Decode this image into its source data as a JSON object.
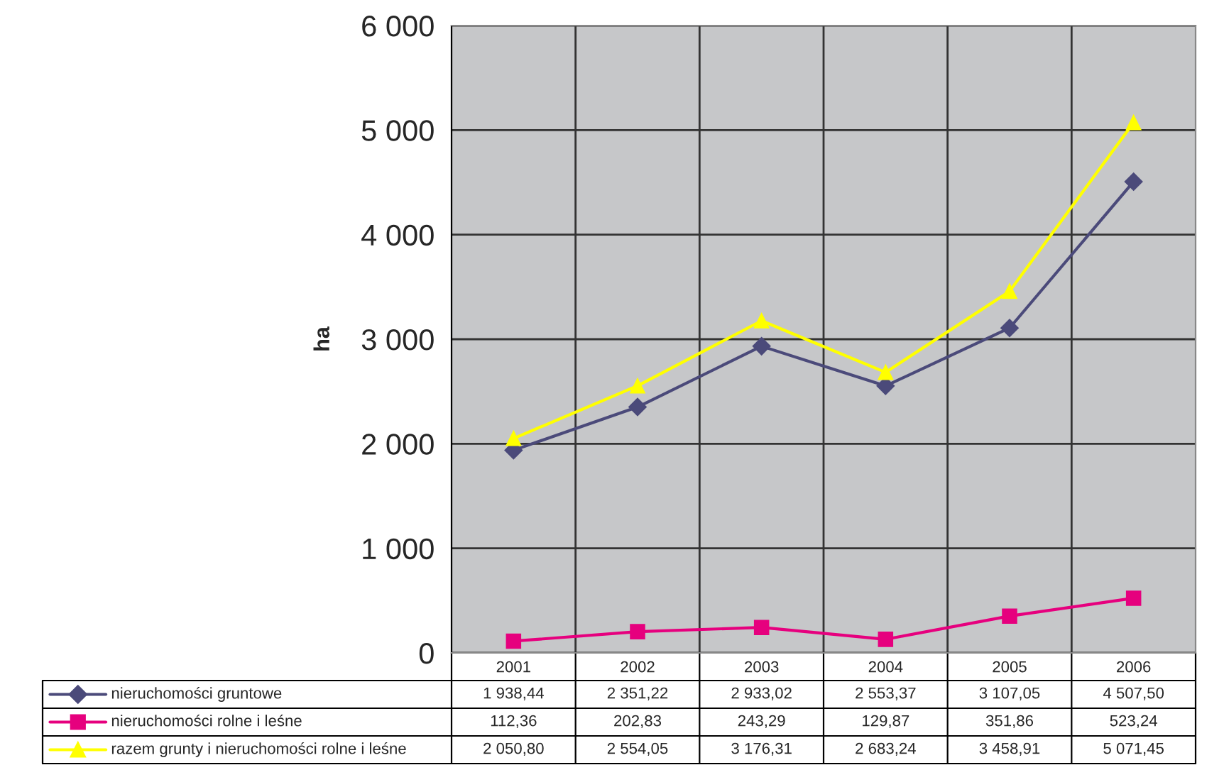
{
  "chart_data": {
    "type": "line",
    "ylabel": "ha",
    "categories": [
      "2001",
      "2002",
      "2003",
      "2004",
      "2005",
      "2006"
    ],
    "series": [
      {
        "name": "nieruchomości gruntowe",
        "color": "#4b4a7a",
        "marker": "diamond",
        "values": [
          1938.44,
          2351.22,
          2933.02,
          2553.37,
          3107.05,
          4507.5
        ],
        "value_labels": [
          "1 938,44",
          "2 351,22",
          "2 933,02",
          "2 553,37",
          "3 107,05",
          "4 507,50"
        ]
      },
      {
        "name": "nieruchomości rolne i leśne",
        "color": "#e6007e",
        "marker": "square",
        "values": [
          112.36,
          202.83,
          243.29,
          129.87,
          351.86,
          523.24
        ],
        "value_labels": [
          "112,36",
          "202,83",
          "243,29",
          "129,87",
          "351,86",
          "523,24"
        ]
      },
      {
        "name": "razem grunty i nieruchomości rolne i leśne",
        "color": "#ffff00",
        "marker": "triangle",
        "values": [
          2050.8,
          2554.05,
          3176.31,
          2683.24,
          3458.91,
          5071.45
        ],
        "value_labels": [
          "2 050,80",
          "2 554,05",
          "3 176,31",
          "2 683,24",
          "3 458,91",
          "5 071,45"
        ]
      }
    ],
    "ylim": [
      0,
      6000
    ],
    "yticks": [
      {
        "value": 0,
        "label": "0"
      },
      {
        "value": 1000,
        "label": "1 000"
      },
      {
        "value": 2000,
        "label": "2 000"
      },
      {
        "value": 3000,
        "label": "3 000"
      },
      {
        "value": 4000,
        "label": "4 000"
      },
      {
        "value": 5000,
        "label": "5 000"
      },
      {
        "value": 6000,
        "label": "6 000"
      }
    ],
    "grid": true,
    "legend": "bottom",
    "line_style": "solid"
  }
}
